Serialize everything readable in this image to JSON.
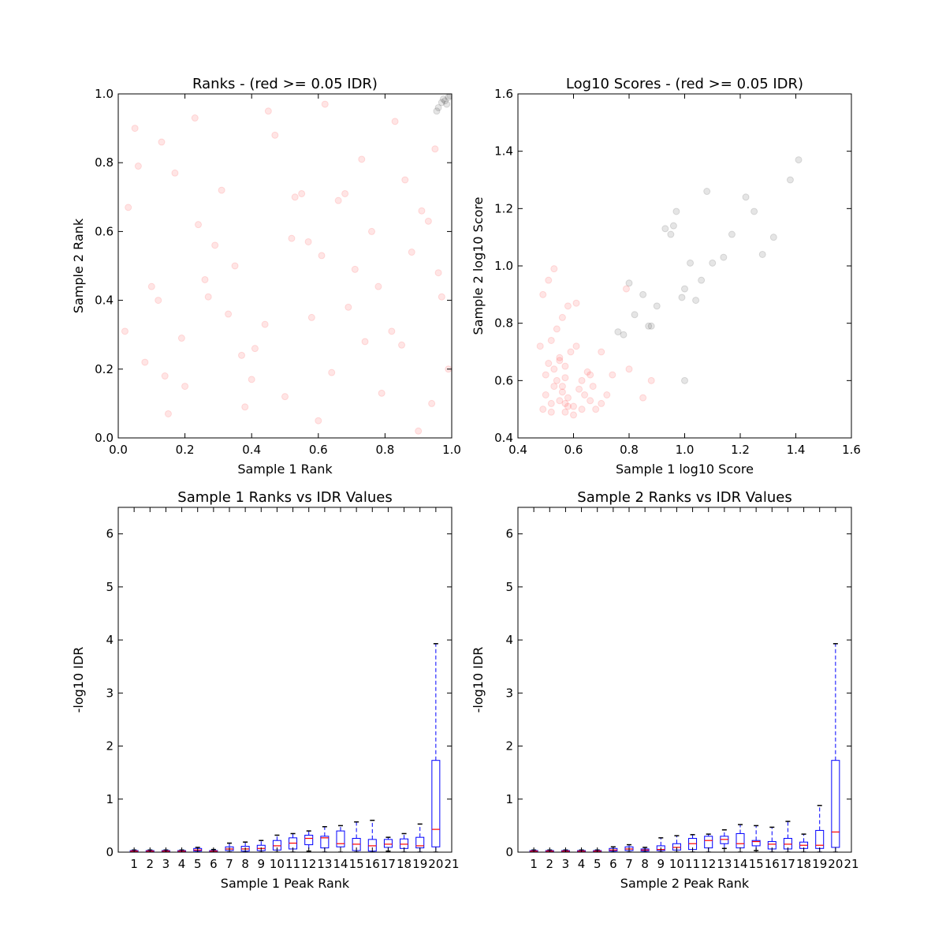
{
  "chart_data": [
    {
      "type": "scatter",
      "title": "Ranks - (red >= 0.05 IDR)",
      "xlabel": "Sample 1 Rank",
      "ylabel": "Sample 2 Rank",
      "xlim": [
        0,
        1
      ],
      "ylim": [
        0,
        1
      ],
      "xticks": [
        {
          "value": 0,
          "label": "0.0"
        },
        0.2,
        0.4,
        0.6,
        0.8,
        {
          "value": 1,
          "label": "1.0"
        }
      ],
      "yticks": [
        {
          "value": 0,
          "label": "0.0"
        },
        0.2,
        0.4,
        0.6,
        0.8,
        {
          "value": 1,
          "label": "1.0"
        }
      ],
      "series": [
        {
          "color": "#ff0000",
          "x": [
            0.05,
            0.12,
            0.2,
            0.31,
            0.44,
            0.52,
            0.6,
            0.73,
            0.85,
            0.93,
            0.08,
            0.17,
            0.26,
            0.38,
            0.47,
            0.58,
            0.66,
            0.79,
            0.88,
            0.97,
            0.03,
            0.14,
            0.23,
            0.35,
            0.41,
            0.55,
            0.69,
            0.76,
            0.9,
            0.95,
            0.1,
            0.19,
            0.29,
            0.33,
            0.5,
            0.62,
            0.71,
            0.82,
            0.86,
            0.99,
            0.06,
            0.15,
            0.24,
            0.37,
            0.45,
            0.57,
            0.64,
            0.78,
            0.91,
            0.94,
            0.02,
            0.13,
            0.27,
            0.4,
            0.53,
            0.61,
            0.68,
            0.74,
            0.83,
            0.96
          ],
          "values": [
            0.9,
            0.4,
            0.15,
            0.72,
            0.33,
            0.58,
            0.05,
            0.81,
            0.27,
            0.63,
            0.22,
            0.77,
            0.46,
            0.09,
            0.88,
            0.35,
            0.69,
            0.13,
            0.54,
            0.41,
            0.67,
            0.18,
            0.93,
            0.5,
            0.26,
            0.71,
            0.38,
            0.6,
            0.02,
            0.84,
            0.44,
            0.29,
            0.56,
            0.36,
            0.12,
            0.97,
            0.49,
            0.31,
            0.75,
            0.2,
            0.79,
            0.07,
            0.62,
            0.24,
            0.95,
            0.57,
            0.19,
            0.44,
            0.66,
            0.1,
            0.31,
            0.86,
            0.41,
            0.17,
            0.7,
            0.53,
            0.71,
            0.28,
            0.92,
            0.48
          ]
        },
        {
          "color": "#000000",
          "x": [
            0.96,
            0.97,
            0.98,
            0.99,
            0.995,
            0.985,
            0.975,
            0.955
          ],
          "values": [
            0.96,
            0.975,
            0.98,
            0.99,
            0.995,
            0.97,
            0.985,
            0.95
          ]
        }
      ]
    },
    {
      "type": "scatter",
      "title": "Log10 Scores - (red >= 0.05 IDR)",
      "xlabel": "Sample 1 log10 Score",
      "ylabel": "Sample 2 log10 Score",
      "xlim": [
        0.4,
        1.6
      ],
      "ylim": [
        0.4,
        1.6
      ],
      "xticks": [
        0.4,
        0.6,
        0.8,
        {
          "value": 1,
          "label": "1.0"
        },
        1.2,
        1.4,
        1.6
      ],
      "yticks": [
        0.4,
        0.6,
        0.8,
        {
          "value": 1,
          "label": "1.0"
        },
        1.2,
        1.4,
        1.6
      ],
      "series": [
        {
          "color": "#ff0000",
          "x": [
            0.49,
            0.5,
            0.52,
            0.53,
            0.54,
            0.55,
            0.56,
            0.57,
            0.58,
            0.6,
            0.62,
            0.64,
            0.66,
            0.68,
            0.5,
            0.51,
            0.53,
            0.55,
            0.57,
            0.59,
            0.61,
            0.63,
            0.65,
            0.67,
            0.7,
            0.72,
            0.48,
            0.52,
            0.54,
            0.56,
            0.58,
            0.49,
            0.51,
            0.53,
            0.55,
            0.57,
            0.6,
            0.63,
            0.66,
            0.56,
            0.7,
            0.74,
            0.8,
            0.85,
            0.52,
            0.58,
            0.88,
            0.61,
            0.79,
            0.57
          ],
          "values": [
            0.5,
            0.55,
            0.52,
            0.58,
            0.6,
            0.53,
            0.56,
            0.49,
            0.54,
            0.51,
            0.57,
            0.55,
            0.53,
            0.5,
            0.62,
            0.66,
            0.64,
            0.68,
            0.65,
            0.7,
            0.72,
            0.6,
            0.63,
            0.58,
            0.52,
            0.55,
            0.72,
            0.74,
            0.78,
            0.82,
            0.86,
            0.9,
            0.95,
            0.99,
            0.67,
            0.61,
            0.48,
            0.5,
            0.62,
            0.58,
            0.7,
            0.62,
            0.64,
            0.54,
            0.49,
            0.51,
            0.6,
            0.87,
            0.92,
            0.52
          ]
        },
        {
          "color": "#000000",
          "x": [
            0.76,
            0.78,
            0.8,
            0.82,
            0.85,
            0.88,
            0.9,
            0.93,
            0.95,
            0.97,
            1.0,
            1.02,
            1.04,
            1.06,
            1.08,
            1.1,
            1.14,
            1.17,
            1.22,
            1.25,
            1.28,
            1.32,
            1.38,
            1.41,
            0.99,
            0.87,
            1.0,
            0.96
          ],
          "values": [
            0.77,
            0.76,
            0.94,
            0.83,
            0.9,
            0.79,
            0.86,
            1.13,
            1.11,
            1.19,
            0.92,
            1.01,
            0.88,
            0.95,
            1.26,
            1.01,
            1.03,
            1.11,
            1.24,
            1.19,
            1.04,
            1.1,
            1.3,
            1.37,
            0.89,
            0.79,
            0.6,
            1.14
          ]
        }
      ]
    },
    {
      "type": "box",
      "title": "Sample 1 Ranks vs IDR Values",
      "xlabel": "Sample 1 Peak Rank",
      "ylabel": "-log10 IDR",
      "xlim": [
        0,
        21
      ],
      "ylim": [
        0,
        6.5
      ],
      "xticks": [
        1,
        2,
        3,
        4,
        5,
        6,
        7,
        8,
        9,
        10,
        11,
        12,
        13,
        14,
        15,
        16,
        17,
        18,
        19,
        20,
        21
      ],
      "yticks": [
        0,
        1,
        2,
        3,
        4,
        5,
        6
      ],
      "x": [
        1,
        2,
        3,
        4,
        5,
        6,
        7,
        8,
        9,
        10,
        11,
        12,
        13,
        14,
        15,
        16,
        17,
        18,
        19,
        20
      ],
      "whisker_low": [
        0,
        0,
        0,
        0,
        0,
        0,
        0,
        0,
        0,
        0,
        0,
        0.02,
        0,
        0,
        0,
        0,
        0.02,
        0,
        0,
        0
      ],
      "q1": [
        0.01,
        0.01,
        0.01,
        0.01,
        0.02,
        0.01,
        0.03,
        0.02,
        0.03,
        0.04,
        0.06,
        0.14,
        0.08,
        0.1,
        0.03,
        0.02,
        0.09,
        0.07,
        0.08,
        0.1
      ],
      "median": [
        0.02,
        0.02,
        0.02,
        0.02,
        0.04,
        0.02,
        0.06,
        0.06,
        0.07,
        0.12,
        0.17,
        0.26,
        0.27,
        0.16,
        0.15,
        0.12,
        0.15,
        0.15,
        0.12,
        0.43
      ],
      "q3": [
        0.03,
        0.03,
        0.03,
        0.03,
        0.07,
        0.03,
        0.1,
        0.11,
        0.13,
        0.22,
        0.27,
        0.32,
        0.3,
        0.4,
        0.26,
        0.24,
        0.24,
        0.25,
        0.28,
        1.73
      ],
      "whisker_high": [
        0.04,
        0.04,
        0.04,
        0.04,
        0.09,
        0.05,
        0.17,
        0.19,
        0.22,
        0.32,
        0.35,
        0.4,
        0.48,
        0.5,
        0.57,
        0.6,
        0.28,
        0.35,
        0.53,
        3.93
      ],
      "box_color": "#0000ff",
      "median_color": "#ff0000"
    },
    {
      "type": "box",
      "title": "Sample 2 Ranks vs IDR Values",
      "xlabel": "Sample 2 Peak Rank",
      "ylabel": "-log10 IDR",
      "xlim": [
        0,
        21
      ],
      "ylim": [
        0,
        6.5
      ],
      "xticks": [
        1,
        2,
        3,
        4,
        5,
        6,
        7,
        8,
        9,
        10,
        11,
        12,
        13,
        14,
        15,
        16,
        17,
        18,
        19,
        20,
        21
      ],
      "yticks": [
        0,
        1,
        2,
        3,
        4,
        5,
        6
      ],
      "x": [
        1,
        2,
        3,
        4,
        5,
        6,
        7,
        8,
        9,
        10,
        11,
        12,
        13,
        14,
        15,
        16,
        17,
        18,
        19,
        20
      ],
      "whisker_low": [
        0,
        0,
        0,
        0,
        0,
        0,
        0,
        0,
        0,
        0,
        0,
        0,
        0.07,
        0,
        0.03,
        0,
        0,
        0,
        0,
        0
      ],
      "q1": [
        0.01,
        0.01,
        0.01,
        0.01,
        0.01,
        0.02,
        0.03,
        0.02,
        0.03,
        0.04,
        0.05,
        0.08,
        0.16,
        0.08,
        0.12,
        0.06,
        0.06,
        0.07,
        0.07,
        0.09
      ],
      "median": [
        0.02,
        0.02,
        0.02,
        0.02,
        0.02,
        0.04,
        0.06,
        0.04,
        0.05,
        0.09,
        0.16,
        0.22,
        0.24,
        0.16,
        0.2,
        0.15,
        0.15,
        0.13,
        0.13,
        0.38
      ],
      "q3": [
        0.03,
        0.03,
        0.03,
        0.03,
        0.03,
        0.07,
        0.1,
        0.06,
        0.12,
        0.16,
        0.26,
        0.3,
        0.3,
        0.35,
        0.22,
        0.2,
        0.26,
        0.19,
        0.41,
        1.73
      ],
      "whisker_high": [
        0.04,
        0.04,
        0.04,
        0.04,
        0.04,
        0.1,
        0.14,
        0.09,
        0.27,
        0.31,
        0.33,
        0.34,
        0.42,
        0.52,
        0.5,
        0.47,
        0.58,
        0.34,
        0.88,
        3.93
      ],
      "box_color": "#0000ff",
      "median_color": "#ff0000"
    }
  ]
}
